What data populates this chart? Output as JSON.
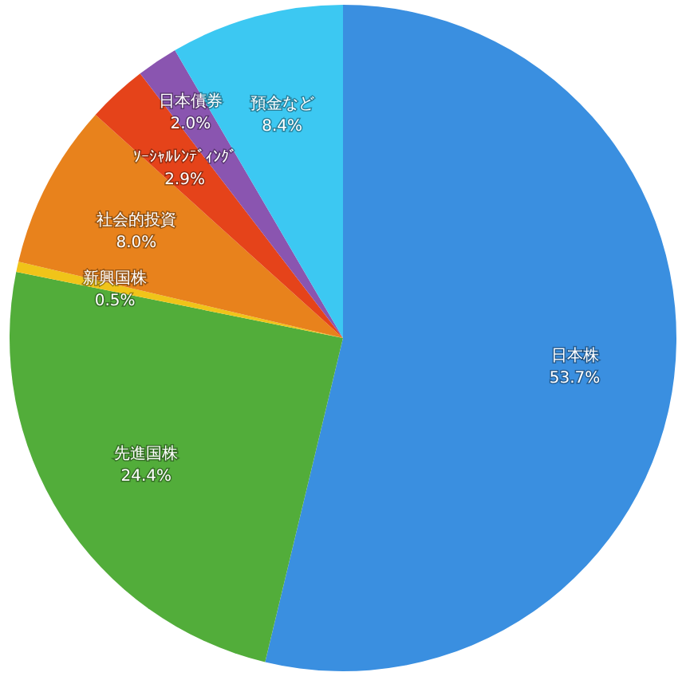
{
  "chart_data": {
    "type": "pie",
    "categories": [
      "日本株",
      "先進国株",
      "新興国株",
      "社会的投資",
      "ｿｰｼｬﾙﾚﾝﾃﾞｨﾝｸﾞ",
      "日本債券",
      "預金など"
    ],
    "values": [
      53.7,
      24.4,
      0.5,
      8.0,
      2.9,
      2.0,
      8.4
    ],
    "colors": [
      "#3a8fe0",
      "#52ad3a",
      "#f0c419",
      "#e8821c",
      "#e5431a",
      "#8a55b0",
      "#3cc8f2"
    ],
    "value_labels": [
      "53.7%",
      "24.4%",
      "0.5%",
      "8.0%",
      "2.9%",
      "2.0%",
      "8.4%"
    ]
  }
}
